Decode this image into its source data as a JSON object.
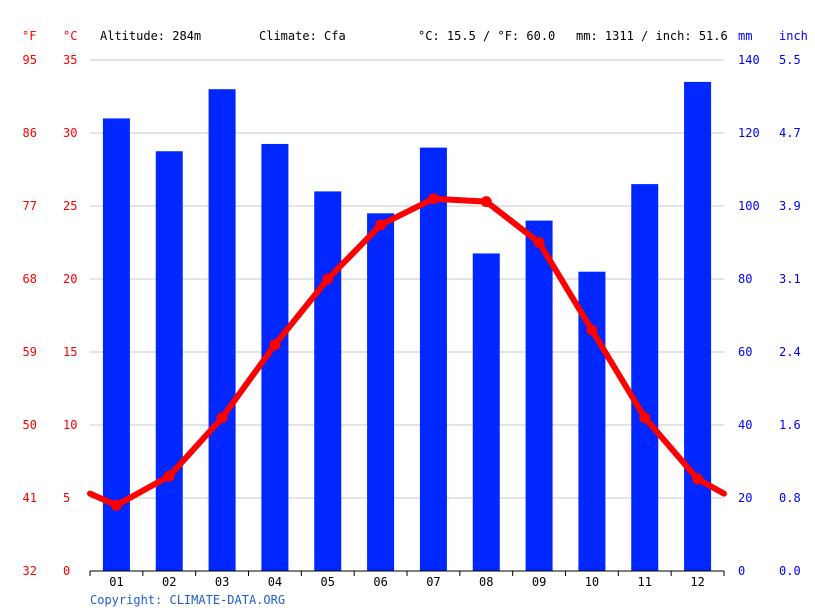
{
  "header": {
    "unit_f": "°F",
    "unit_c": "°C",
    "altitude": "Altitude: 284m",
    "climate": "Climate: Cfa",
    "avg_temp": "°C: 15.5 / °F: 60.0",
    "precip_total": "mm: 1311 / inch: 51.6",
    "unit_mm": "mm",
    "unit_inch": "inch"
  },
  "axes": {
    "fahrenheit_ticks": [
      "32",
      "41",
      "50",
      "59",
      "68",
      "77",
      "86",
      "95"
    ],
    "celsius_ticks": [
      "0",
      "5",
      "10",
      "15",
      "20",
      "25",
      "30",
      "35"
    ],
    "mm_ticks": [
      "0",
      "20",
      "40",
      "60",
      "80",
      "100",
      "120",
      "140"
    ],
    "inch_ticks": [
      "0.0",
      "0.8",
      "1.6",
      "2.4",
      "3.1",
      "3.9",
      "4.7",
      "5.5"
    ]
  },
  "footer": {
    "copyright": "Copyright: CLIMATE-DATA.ORG"
  },
  "colors": {
    "temperature": "#ff0000",
    "precipitation": "#0027ff",
    "grid": "#c8c8c8",
    "copyright": "#1f5fd0"
  },
  "chart_data": {
    "type": "bar",
    "categories": [
      "01",
      "02",
      "03",
      "04",
      "05",
      "06",
      "07",
      "08",
      "09",
      "10",
      "11",
      "12"
    ],
    "series": [
      {
        "type": "bar",
        "axis": "mm",
        "values": [
          124,
          115,
          132,
          117,
          104,
          98,
          116,
          87,
          96,
          82,
          106,
          134
        ]
      },
      {
        "type": "line",
        "axis": "°C",
        "values": [
          4.5,
          6.5,
          10.5,
          15.5,
          20.0,
          23.7,
          25.5,
          25.3,
          22.5,
          16.5,
          10.5,
          6.3
        ]
      }
    ],
    "line_edges_celsius": [
      5.3,
      5.3
    ],
    "ylim_celsius": [
      0,
      35
    ],
    "ylim_mm": [
      0,
      140
    ],
    "grid": true
  }
}
